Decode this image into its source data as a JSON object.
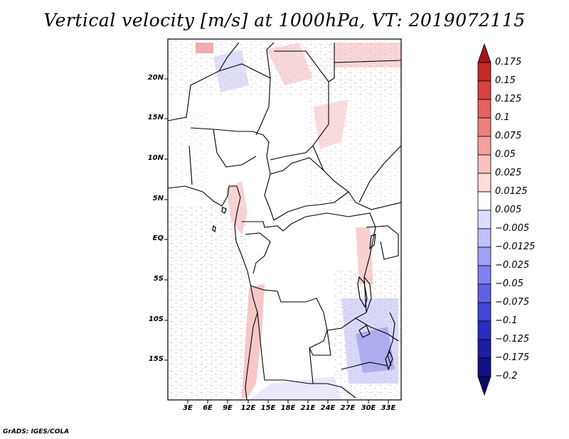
{
  "title": "Vertical velocity [m/s] at 1000hPa, VT: 2019072115",
  "credit": "GrADS: IGES/COLA",
  "map": {
    "region": "Central Africa",
    "lat_labels": [
      "20N",
      "15N",
      "10N",
      "5N",
      "EQ",
      "5S",
      "10S",
      "15S"
    ],
    "lon_labels": [
      "3E",
      "6E",
      "9E",
      "12E",
      "15E",
      "18E",
      "21E",
      "24E",
      "27E",
      "30E",
      "33E"
    ]
  },
  "colorbar": {
    "labels": [
      "0.175",
      "0.15",
      "0.125",
      "0.1",
      "0.075",
      "0.05",
      "0.025",
      "0.0125",
      "0.005",
      "−0.005",
      "−0.0125",
      "−0.025",
      "−0.05",
      "−0.075",
      "−0.1",
      "−0.125",
      "−0.175",
      "−0.2"
    ],
    "colors": [
      "#a01818",
      "#c22a2a",
      "#d84242",
      "#e86060",
      "#f08080",
      "#f6a0a0",
      "#fac0c0",
      "#fcdcdc",
      "#ffffff",
      "#dcdcfc",
      "#c0c0fa",
      "#a0a0f6",
      "#8080f0",
      "#6060e6",
      "#4444d8",
      "#2a2ac4",
      "#1c1ca4",
      "#121286",
      "#0a0a66"
    ]
  }
}
